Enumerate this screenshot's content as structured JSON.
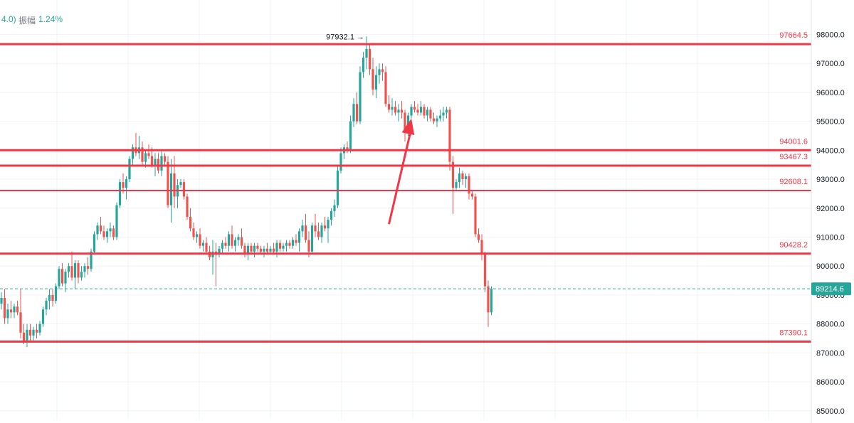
{
  "header": {
    "prefix_text": "4.0)",
    "amplitude_label": "振幅",
    "amplitude_value": "1.24%"
  },
  "colors": {
    "up": "#26a69a",
    "down": "#ef5350",
    "level_line": "#f23645",
    "grid": "#f0f3fa",
    "axis_text": "#131722",
    "current_price_tag": "#26a69a",
    "annotation_arrow": "#f23645"
  },
  "chart_data": {
    "type": "candlestick",
    "yaxis_ticks": [
      "98000.0",
      "97000.0",
      "96000.0",
      "95000.0",
      "94000.0",
      "93000.0",
      "92000.0",
      "91000.0",
      "90000.0",
      "89000.0",
      "88000.0",
      "87000.0",
      "86000.0",
      "85000.0"
    ],
    "ylim": [
      84700,
      98700
    ],
    "grid": true,
    "current_price": 89214.6,
    "current_price_label": "89214.6",
    "high_annotation": {
      "value": 97932.1,
      "label": "97932.1 →"
    },
    "levels": [
      {
        "value": 97664.5,
        "label": "97664.5"
      },
      {
        "value": 94001.6,
        "label": "94001.6"
      },
      {
        "value": 93467.3,
        "label": "93467.3"
      },
      {
        "value": 92608.1,
        "label": "92608.1"
      },
      {
        "value": 90428.2,
        "label": "90428.2"
      },
      {
        "value": 87390.1,
        "label": "87390.1"
      }
    ],
    "arrow_annotation": {
      "from": 91450,
      "to": 95100,
      "candle_from": 121,
      "candle_to": 128
    },
    "candles": [
      [
        88700,
        89100,
        88500,
        88900
      ],
      [
        88900,
        89200,
        88000,
        88200
      ],
      [
        88200,
        88700,
        88000,
        88500
      ],
      [
        88500,
        88800,
        88200,
        88400
      ],
      [
        88400,
        88700,
        88200,
        88600
      ],
      [
        88600,
        88800,
        88300,
        88400
      ],
      [
        88400,
        89200,
        87500,
        87700
      ],
      [
        87700,
        88000,
        87300,
        87400
      ],
      [
        87400,
        88000,
        87200,
        87800
      ],
      [
        87800,
        88000,
        87400,
        87600
      ],
      [
        87600,
        87900,
        87400,
        87800
      ],
      [
        87800,
        88000,
        87500,
        87700
      ],
      [
        87700,
        88100,
        87600,
        88000
      ],
      [
        88000,
        88600,
        87900,
        88500
      ],
      [
        88500,
        88900,
        88300,
        88800
      ],
      [
        88800,
        89200,
        88500,
        89000
      ],
      [
        89000,
        89200,
        88600,
        88800
      ],
      [
        88800,
        89400,
        88700,
        89300
      ],
      [
        89300,
        90000,
        89200,
        89900
      ],
      [
        89900,
        90100,
        89300,
        89400
      ],
      [
        89400,
        89900,
        89100,
        89800
      ],
      [
        89800,
        90100,
        89600,
        90000
      ],
      [
        90000,
        90500,
        89500,
        89600
      ],
      [
        89600,
        90200,
        89200,
        90100
      ],
      [
        90100,
        90200,
        89400,
        89600
      ],
      [
        89600,
        90000,
        89500,
        89800
      ],
      [
        89800,
        90100,
        89600,
        90000
      ],
      [
        90000,
        90300,
        89700,
        89900
      ],
      [
        89900,
        90600,
        89800,
        90500
      ],
      [
        90500,
        91200,
        90400,
        91100
      ],
      [
        91100,
        91500,
        90900,
        91400
      ],
      [
        91400,
        91700,
        91100,
        91200
      ],
      [
        91200,
        91400,
        90900,
        91000
      ],
      [
        91000,
        91300,
        90800,
        91200
      ],
      [
        91200,
        91500,
        91000,
        91300
      ],
      [
        91300,
        91400,
        90900,
        91000
      ],
      [
        91000,
        92200,
        90900,
        92100
      ],
      [
        92100,
        93000,
        92000,
        92900
      ],
      [
        92900,
        93200,
        92500,
        92700
      ],
      [
        92700,
        93100,
        92300,
        93000
      ],
      [
        93000,
        93800,
        92900,
        93700
      ],
      [
        93700,
        94200,
        93500,
        94100
      ],
      [
        94100,
        94600,
        93800,
        93900
      ],
      [
        93900,
        94500,
        93700,
        94100
      ],
      [
        94100,
        94300,
        93500,
        93600
      ],
      [
        93600,
        94000,
        93400,
        93900
      ],
      [
        93900,
        94200,
        93700,
        93800
      ],
      [
        93800,
        94100,
        93400,
        93500
      ],
      [
        93500,
        93900,
        93100,
        93700
      ],
      [
        93700,
        93900,
        93200,
        93300
      ],
      [
        93300,
        94000,
        93100,
        93800
      ],
      [
        93800,
        93900,
        93500,
        93600
      ],
      [
        93600,
        93800,
        92000,
        92100
      ],
      [
        92100,
        93700,
        91500,
        93200
      ],
      [
        93200,
        93800,
        92000,
        92400
      ],
      [
        92400,
        93000,
        92000,
        92800
      ],
      [
        92800,
        93000,
        92700,
        92900
      ],
      [
        92900,
        93000,
        92300,
        92400
      ],
      [
        92400,
        92500,
        91600,
        91700
      ],
      [
        91700,
        92000,
        91200,
        91300
      ],
      [
        91300,
        91500,
        90900,
        91000
      ],
      [
        91000,
        91200,
        90800,
        91100
      ],
      [
        91100,
        91300,
        90600,
        90700
      ],
      [
        90700,
        90900,
        90500,
        90800
      ],
      [
        90800,
        91000,
        90400,
        90500
      ],
      [
        90500,
        90700,
        90200,
        90300
      ],
      [
        90300,
        90900,
        89700,
        90500
      ],
      [
        90500,
        90800,
        89300,
        90400
      ],
      [
        90400,
        90700,
        90300,
        90600
      ],
      [
        90600,
        90900,
        90400,
        90800
      ],
      [
        90800,
        91000,
        90600,
        90700
      ],
      [
        90700,
        91200,
        90500,
        91100
      ],
      [
        91100,
        91400,
        90600,
        90700
      ],
      [
        90700,
        91000,
        90500,
        90900
      ],
      [
        90900,
        91100,
        90700,
        91000
      ],
      [
        91000,
        91300,
        90600,
        90700
      ],
      [
        90700,
        90800,
        90300,
        90400
      ],
      [
        90400,
        90800,
        90200,
        90700
      ],
      [
        90700,
        90800,
        90400,
        90500
      ],
      [
        90500,
        90800,
        90300,
        90700
      ],
      [
        90700,
        90800,
        90500,
        90600
      ],
      [
        90600,
        90700,
        90400,
        90500
      ],
      [
        90500,
        90700,
        90300,
        90600
      ],
      [
        90600,
        90800,
        90400,
        90500
      ],
      [
        90500,
        90700,
        90400,
        90600
      ],
      [
        90600,
        90800,
        90400,
        90500
      ],
      [
        90500,
        90900,
        90300,
        90800
      ],
      [
        90800,
        90900,
        90500,
        90600
      ],
      [
        90600,
        90800,
        90500,
        90700
      ],
      [
        90700,
        90900,
        90500,
        90800
      ],
      [
        90800,
        90900,
        90600,
        90700
      ],
      [
        90700,
        91000,
        90600,
        90900
      ],
      [
        90900,
        91100,
        90700,
        90800
      ],
      [
        90800,
        91300,
        90500,
        91200
      ],
      [
        91200,
        91600,
        91000,
        91400
      ],
      [
        91400,
        91800,
        90800,
        90900
      ],
      [
        90900,
        91200,
        90300,
        90500
      ],
      [
        90500,
        91500,
        90400,
        91400
      ],
      [
        91400,
        91800,
        91000,
        91200
      ],
      [
        91200,
        91500,
        90900,
        91000
      ],
      [
        91000,
        91500,
        90800,
        91400
      ],
      [
        91400,
        91700,
        91200,
        91300
      ],
      [
        91300,
        91700,
        90800,
        91600
      ],
      [
        91600,
        92000,
        91400,
        91900
      ],
      [
        91900,
        92300,
        91700,
        92100
      ],
      [
        92100,
        93500,
        92000,
        93300
      ],
      [
        93300,
        94100,
        93200,
        93900
      ],
      [
        93900,
        94200,
        93700,
        94100
      ],
      [
        94100,
        94300,
        93900,
        94000
      ],
      [
        94000,
        95200,
        93900,
        95000
      ],
      [
        95000,
        95800,
        94800,
        95600
      ],
      [
        95600,
        96000,
        94900,
        95000
      ],
      [
        95000,
        96900,
        94900,
        96700
      ],
      [
        96700,
        97400,
        96500,
        97200
      ],
      [
        97200,
        97932.1,
        96800,
        97500
      ],
      [
        97500,
        97700,
        96600,
        96800
      ],
      [
        96800,
        97200,
        95900,
        96100
      ],
      [
        96100,
        96900,
        95800,
        96600
      ],
      [
        96600,
        97000,
        96300,
        96800
      ],
      [
        96800,
        97000,
        96400,
        96700
      ],
      [
        96700,
        96900,
        95500,
        95600
      ],
      [
        95600,
        95900,
        95300,
        95400
      ],
      [
        95400,
        95800,
        95200,
        95500
      ],
      [
        95500,
        95700,
        95200,
        95300
      ],
      [
        95300,
        95600,
        95000,
        95400
      ],
      [
        95400,
        95700,
        95100,
        95300
      ],
      [
        95300,
        95400,
        94300,
        94600
      ],
      [
        94600,
        95300,
        94500,
        95200
      ],
      [
        95200,
        95600,
        95100,
        95500
      ],
      [
        95500,
        95700,
        95300,
        95400
      ],
      [
        95400,
        95600,
        95200,
        95300
      ],
      [
        95300,
        95700,
        95200,
        95500
      ],
      [
        95500,
        95600,
        95100,
        95200
      ],
      [
        95200,
        95500,
        95000,
        95400
      ],
      [
        95400,
        95500,
        95000,
        95100
      ],
      [
        95100,
        95300,
        94900,
        95000
      ],
      [
        95000,
        95200,
        94800,
        95100
      ],
      [
        95100,
        95400,
        95000,
        95200
      ],
      [
        95200,
        95500,
        95000,
        95300
      ],
      [
        95300,
        95500,
        95100,
        95400
      ],
      [
        95400,
        95500,
        93300,
        93600
      ],
      [
        93600,
        93800,
        91800,
        92700
      ],
      [
        92700,
        93000,
        92600,
        92900
      ],
      [
        92900,
        93400,
        92700,
        93200
      ],
      [
        93200,
        93300,
        92800,
        93000
      ],
      [
        93000,
        93200,
        92700,
        93100
      ],
      [
        93100,
        93200,
        92300,
        92500
      ],
      [
        92500,
        92600,
        92300,
        92400
      ],
      [
        92400,
        92500,
        91000,
        91100
      ],
      [
        91100,
        91300,
        90800,
        90900
      ],
      [
        90900,
        91100,
        90200,
        90400
      ],
      [
        90400,
        90500,
        89100,
        89300
      ],
      [
        89300,
        89500,
        87900,
        88400
      ],
      [
        88400,
        89300,
        88300,
        89214.6
      ]
    ]
  }
}
